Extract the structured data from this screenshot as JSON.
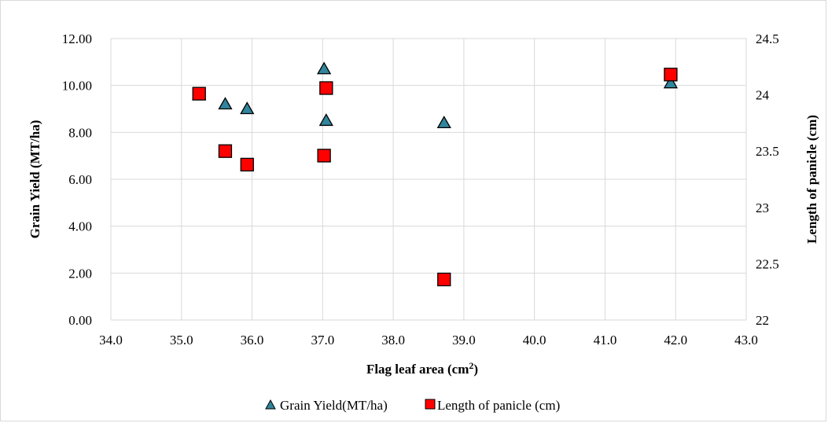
{
  "chart_data": {
    "type": "scatter",
    "title": "",
    "xlabel": "Flag leaf area (cm²)",
    "ylabel_left": "Grain Yield (MT/ha)",
    "ylabel_right": "Length of panicle (cm)",
    "xlim": [
      34.0,
      43.0
    ],
    "xticks": [
      "34.0",
      "35.0",
      "36.0",
      "37.0",
      "38.0",
      "39.0",
      "40.0",
      "41.0",
      "42.0",
      "43.0"
    ],
    "ylim_left": [
      0.0,
      12.0
    ],
    "yticks_left": [
      "0.00",
      "2.00",
      "4.00",
      "6.00",
      "8.00",
      "10.00",
      "12.00"
    ],
    "ylim_right": [
      22.0,
      24.5
    ],
    "yticks_right": [
      "22",
      "22.5",
      "23",
      "23.5",
      "24",
      "24.5"
    ],
    "grid": true,
    "legend_position": "bottom",
    "series": [
      {
        "name": "Grain Yield(MT/ha)",
        "axis": "left",
        "marker": "triangle",
        "color": "#31859C",
        "x": [
          35.25,
          35.62,
          35.93,
          37.02,
          37.05,
          38.72,
          41.93
        ],
        "y": [
          9.6,
          9.2,
          9.0,
          10.7,
          8.5,
          8.4,
          10.1
        ]
      },
      {
        "name": "Length of panicle (cm)",
        "axis": "right",
        "marker": "square",
        "color": "#FF0000",
        "x": [
          35.25,
          35.62,
          35.93,
          37.02,
          37.05,
          38.72,
          41.93
        ],
        "y": [
          24.01,
          23.5,
          23.38,
          23.46,
          24.06,
          22.36,
          24.18
        ]
      }
    ]
  }
}
